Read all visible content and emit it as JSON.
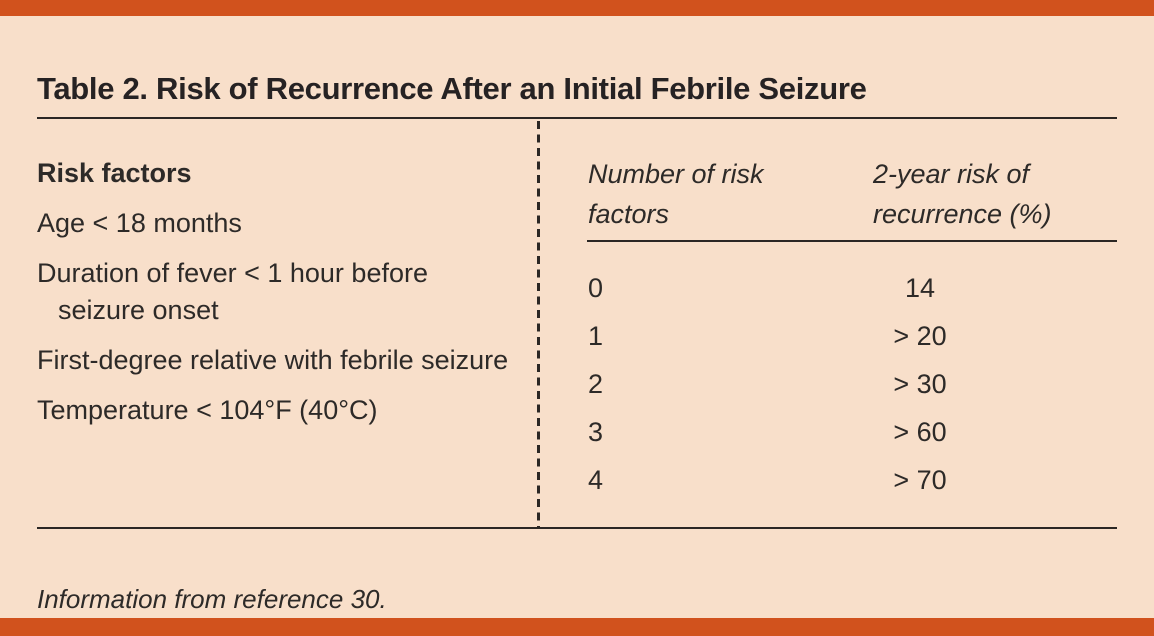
{
  "page": {
    "title": "Table 2. Risk of Recurrence After an Initial Febrile Seizure",
    "footnote": "Information from reference 30.",
    "colors": {
      "accent_bar": "#d1521d",
      "background": "#f8dfca",
      "text": "#2d2a28",
      "rule": "#2b2724"
    }
  },
  "risk_factors": {
    "heading": "Risk factors",
    "items": [
      "Age < 18 months",
      "Duration of fever < 1 hour before seizure onset",
      "First-degree relative with febrile seizure",
      "Temperature < 104°F (40°C)"
    ]
  },
  "recurrence_table": {
    "columns": {
      "factors": "Number of risk\nfactors",
      "risk": "2-year risk of\nrecurrence (%)"
    },
    "rows": [
      {
        "factors": "0",
        "risk": "14"
      },
      {
        "factors": "1",
        "risk": "> 20"
      },
      {
        "factors": "2",
        "risk": "> 30"
      },
      {
        "factors": "3",
        "risk": "> 60"
      },
      {
        "factors": "4",
        "risk": "> 70"
      }
    ]
  }
}
